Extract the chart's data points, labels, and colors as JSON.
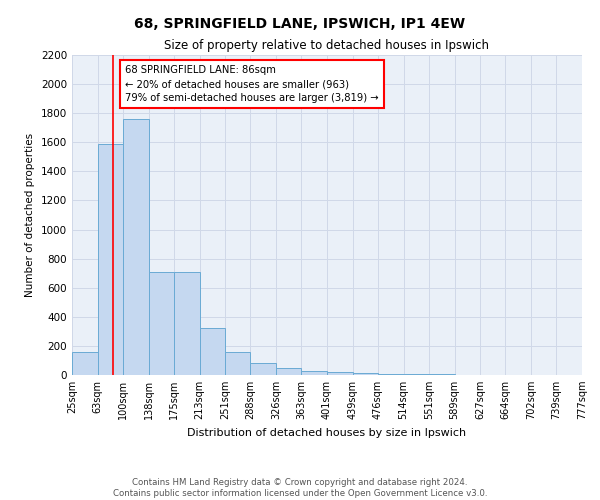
{
  "title": "68, SPRINGFIELD LANE, IPSWICH, IP1 4EW",
  "subtitle": "Size of property relative to detached houses in Ipswich",
  "xlabel": "Distribution of detached houses by size in Ipswich",
  "ylabel": "Number of detached properties",
  "bar_values": [
    160,
    1590,
    1760,
    710,
    710,
    320,
    160,
    85,
    50,
    25,
    18,
    12,
    8,
    5,
    5,
    3,
    3,
    2,
    2,
    2
  ],
  "bin_edges": [
    25,
    63,
    100,
    138,
    175,
    213,
    251,
    288,
    326,
    363,
    401,
    439,
    476,
    514,
    551,
    589,
    627,
    664,
    702,
    739,
    777
  ],
  "tick_labels": [
    "25sqm",
    "63sqm",
    "100sqm",
    "138sqm",
    "175sqm",
    "213sqm",
    "251sqm",
    "288sqm",
    "326sqm",
    "363sqm",
    "401sqm",
    "439sqm",
    "476sqm",
    "514sqm",
    "551sqm",
    "589sqm",
    "627sqm",
    "664sqm",
    "702sqm",
    "739sqm",
    "777sqm"
  ],
  "ylim": [
    0,
    2200
  ],
  "yticks": [
    0,
    200,
    400,
    600,
    800,
    1000,
    1200,
    1400,
    1600,
    1800,
    2000,
    2200
  ],
  "bar_color": "#c5d8f0",
  "bar_edge_color": "#6aaad4",
  "red_line_x": 86,
  "annotation_text": "68 SPRINGFIELD LANE: 86sqm\n← 20% of detached houses are smaller (963)\n79% of semi-detached houses are larger (3,819) →",
  "annotation_box_color": "white",
  "annotation_box_edge": "red",
  "footer_text": "Contains HM Land Registry data © Crown copyright and database right 2024.\nContains public sector information licensed under the Open Government Licence v3.0.",
  "grid_color": "#d0d8e8",
  "bg_color": "#eaf0f8"
}
